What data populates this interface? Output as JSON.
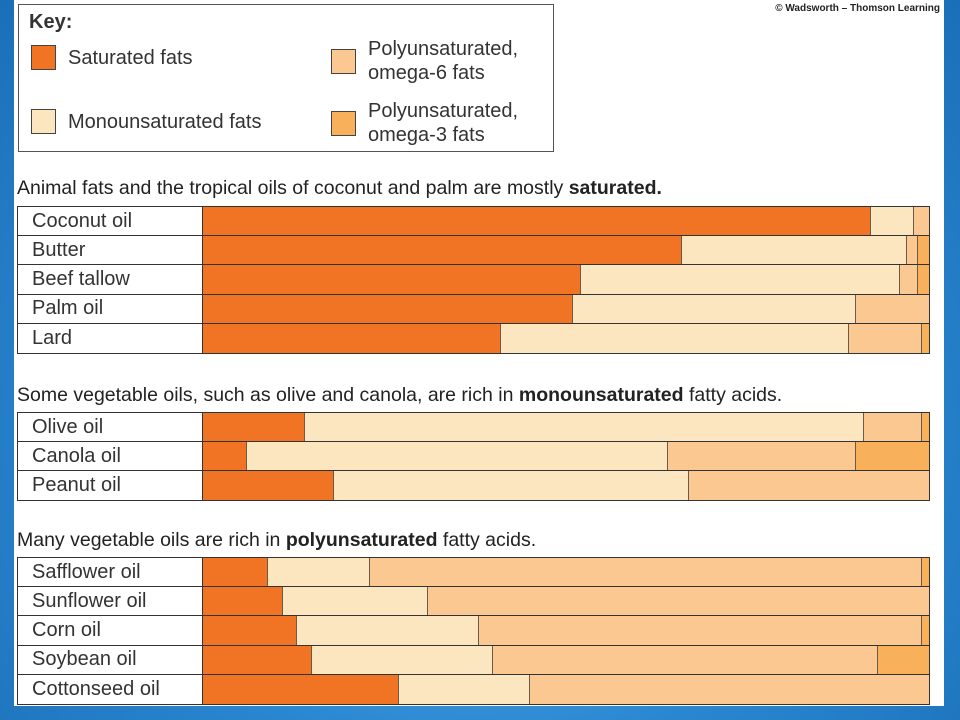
{
  "credit": "© Wadsworth – Thomson Learning",
  "colors": {
    "saturated": "#f07423",
    "monounsaturated": "#fbe6c0",
    "omega6": "#fbc892",
    "omega3": "#f8b05a"
  },
  "key": {
    "title": "Key:",
    "items": [
      {
        "id": "saturated",
        "label": "Saturated fats"
      },
      {
        "id": "omega6",
        "label": "Polyunsaturated,\nomega-6 fats"
      },
      {
        "id": "monounsaturated",
        "label": "Monounsaturated fats"
      },
      {
        "id": "omega3",
        "label": "Polyunsaturated,\nomega-3 fats"
      }
    ]
  },
  "chart_data": {
    "type": "bar",
    "orientation": "horizontal",
    "stacked": true,
    "series_order": [
      "saturated",
      "monounsaturated",
      "omega6",
      "omega3"
    ],
    "groups": [
      {
        "title_pre": "Animal fats and the tropical oils of coconut and palm are mostly ",
        "title_bold": "saturated.",
        "title_post": "",
        "rows": [
          {
            "label": "Coconut oil",
            "values": [
              92,
              6,
              2,
              0
            ]
          },
          {
            "label": "Butter",
            "values": [
              66,
              31,
              1.5,
              1.5
            ]
          },
          {
            "label": "Beef tallow",
            "values": [
              52,
              44,
              2.5,
              1.5
            ]
          },
          {
            "label": "Palm oil",
            "values": [
              51,
              39,
              10,
              0
            ]
          },
          {
            "label": "Lard",
            "values": [
              41,
              48,
              10,
              1
            ]
          }
        ]
      },
      {
        "title_pre": "Some vegetable oils, such as olive and canola, are rich in ",
        "title_bold": "monounsaturated",
        "title_post": " fatty acids.",
        "rows": [
          {
            "label": "Olive oil",
            "values": [
              14,
              77,
              8,
              1
            ]
          },
          {
            "label": "Canola oil",
            "values": [
              6,
              58,
              26,
              10
            ]
          },
          {
            "label": "Peanut oil",
            "values": [
              18,
              49,
              33,
              0
            ]
          }
        ]
      },
      {
        "title_pre": "Many vegetable oils are rich in ",
        "title_bold": "polyunsaturated",
        "title_post": " fatty acids.",
        "rows": [
          {
            "label": "Safflower oil",
            "values": [
              9,
              14,
              76,
              1
            ]
          },
          {
            "label": "Sunflower oil",
            "values": [
              11,
              20,
              69,
              0
            ]
          },
          {
            "label": "Corn oil",
            "values": [
              13,
              25,
              61,
              1
            ]
          },
          {
            "label": "Soybean oil",
            "values": [
              15,
              25,
              53,
              7
            ]
          },
          {
            "label": "Cottonseed oil",
            "values": [
              27,
              18,
              55,
              0
            ]
          }
        ]
      }
    ]
  }
}
